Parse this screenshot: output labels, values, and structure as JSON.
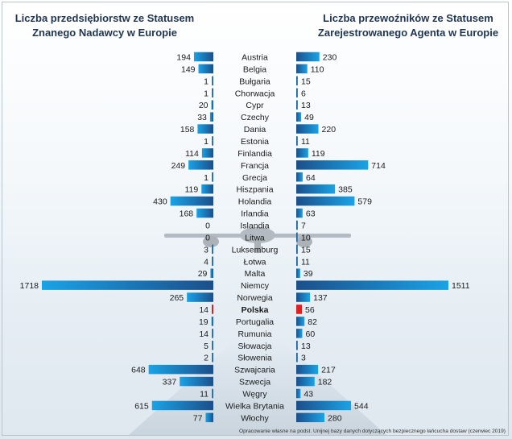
{
  "titles": {
    "left_line1": "Liczba przedsiębiorstw ze Statusem",
    "left_line2": "Znanego Nadawcy w Europie",
    "right_line1": "Liczba przewoźników ze Statusem",
    "right_line2": "Zarejestrowanego Agenta w Europie"
  },
  "footnote": "Opracowanie własne na podst. Unijnej bazy danych dotyczących bezpiecznego łańcucha dostaw (czerwiec 2019)",
  "colors": {
    "bar_dark": "#1b4f8a",
    "bar_light": "#1aa3e6",
    "highlight": "#e02020",
    "text": "#1a1a1a"
  },
  "chart_data": {
    "type": "bar",
    "layout": "butterfly",
    "categories": [
      "Austria",
      "Belgia",
      "Bułgaria",
      "Chorwacja",
      "Cypr",
      "Czechy",
      "Dania",
      "Estonia",
      "Finlandia",
      "Francja",
      "Grecja",
      "Hiszpania",
      "Holandia",
      "Irlandia",
      "Islandia",
      "Litwa",
      "Luksemburg",
      "Łotwa",
      "Malta",
      "Niemcy",
      "Norwegia",
      "Polska",
      "Portugalia",
      "Rumunia",
      "Słowacja",
      "Słowenia",
      "Szwajcaria",
      "Szwecja",
      "Węgry",
      "Wielka Brytania",
      "Włochy"
    ],
    "highlight_category": "Polska",
    "series": [
      {
        "name": "Liczba przedsiębiorstw ze Statusem Znanego Nadawcy w Europie",
        "side": "left",
        "values": [
          194,
          149,
          1,
          1,
          20,
          33,
          158,
          1,
          114,
          249,
          1,
          119,
          430,
          168,
          0,
          0,
          3,
          4,
          29,
          1718,
          265,
          14,
          19,
          14,
          5,
          2,
          648,
          337,
          11,
          615,
          77
        ]
      },
      {
        "name": "Liczba przewoźników ze Statusem Zarejestrowanego Agenta w Europie",
        "side": "right",
        "values": [
          230,
          110,
          15,
          6,
          13,
          49,
          220,
          11,
          119,
          714,
          64,
          385,
          579,
          63,
          7,
          10,
          15,
          11,
          39,
          1511,
          137,
          56,
          82,
          60,
          13,
          3,
          217,
          182,
          43,
          544,
          280
        ]
      }
    ]
  }
}
